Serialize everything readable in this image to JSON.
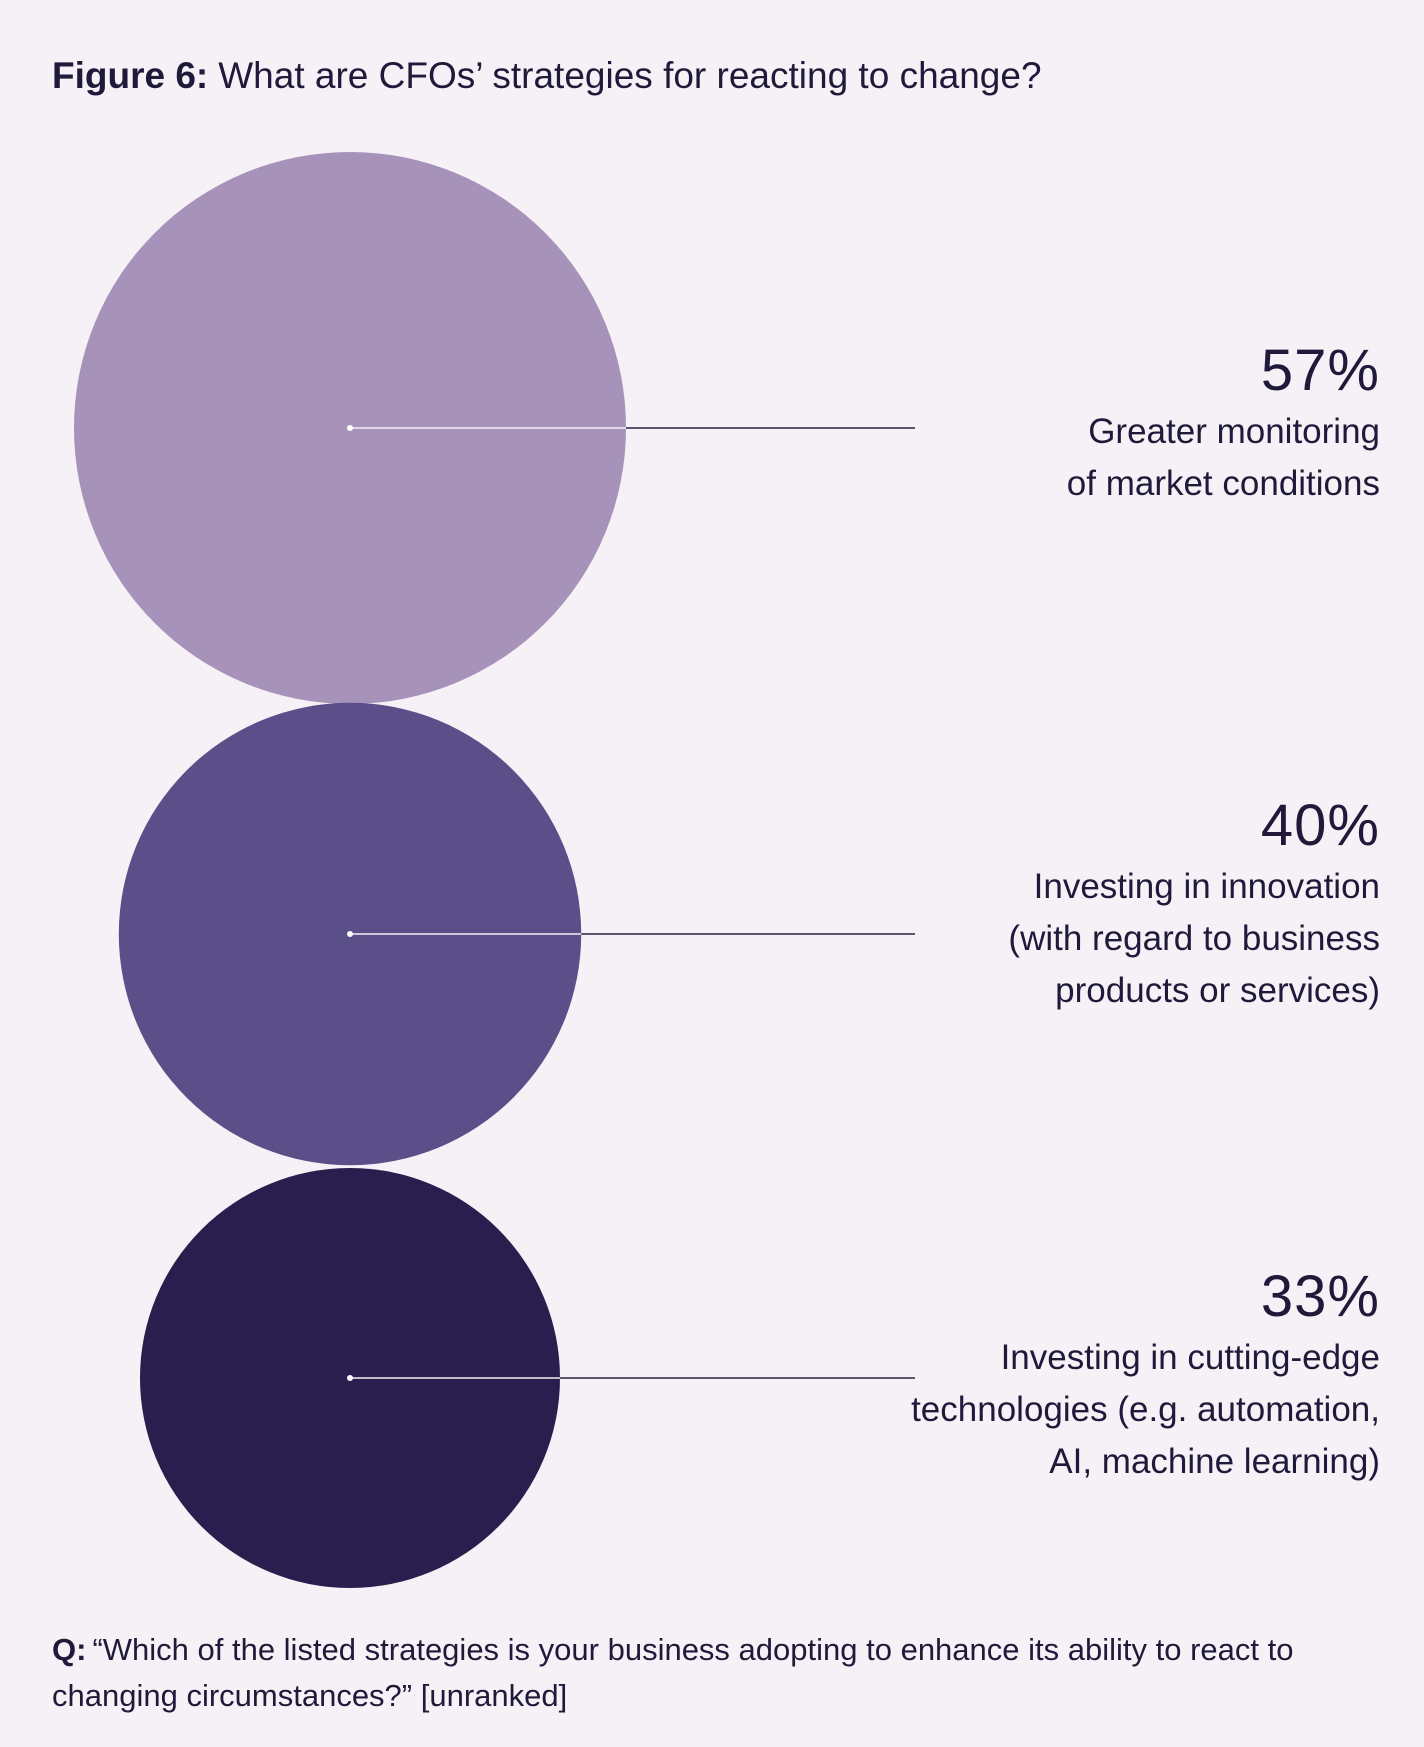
{
  "header": {
    "title_lead": "Figure 6:",
    "title_text": "What are CFOs’ strategies for reacting to change?"
  },
  "chart_data": {
    "type": "bubble",
    "title": "Figure 6: What are CFOs’ strategies for reacting to change?",
    "categories": [
      "Greater monitoring of market conditions",
      "Investing in innovation (with regard to business products or services)",
      "Investing in cutting-edge technologies (e.g. automation, AI, machine learning)"
    ],
    "values": [
      57,
      40,
      33
    ],
    "unit": "%",
    "colors": [
      "#a792b9",
      "#5b4f89",
      "#2a1e4e"
    ]
  },
  "labels": [
    {
      "value": "57%",
      "text": "Greater monitoring\nof market conditions"
    },
    {
      "value": "40%",
      "text": "Investing in innovation\n(with regard to business\nproducts or services)"
    },
    {
      "value": "33%",
      "text": "Investing in cutting-edge\ntechnologies (e.g. automation,\nAI, machine learning)"
    }
  ],
  "footer": {
    "lead": "Q:",
    "text": "“Which of the listed strategies is your business adopting to enhance its ability to react to changing circumstances?” [unranked]"
  }
}
